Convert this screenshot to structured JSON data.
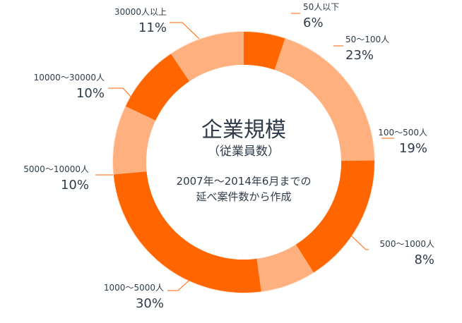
{
  "chart_data": {
    "type": "pie",
    "title": "企業規模",
    "subtitle": "（従業員数）",
    "note_lines": [
      "2007年〜2014年6月までの",
      "延べ案件数から作成"
    ],
    "categories": [
      "50人以下",
      "50〜100人",
      "100〜500人",
      "500〜1000人",
      "1000〜5000人",
      "5000〜10000人",
      "10000〜30000人",
      "30000人以上"
    ],
    "values": [
      6,
      23,
      19,
      8,
      30,
      10,
      10,
      11
    ],
    "value_labels": [
      "6%",
      "23%",
      "19%",
      "8%",
      "30%",
      "10%",
      "10%",
      "11%"
    ],
    "colors": [
      "#ff6600",
      "#ffb07f",
      "#ff6600",
      "#ffb07f",
      "#ff6600",
      "#ffb07f",
      "#ff6600",
      "#ffb07f"
    ],
    "legend": "none",
    "grid": false
  }
}
